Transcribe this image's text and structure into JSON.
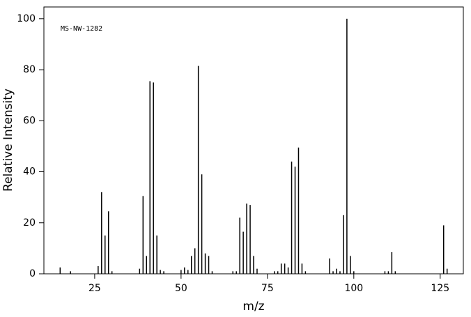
{
  "chart_data": {
    "type": "stem",
    "annotation": "MS-NW-1282",
    "xlabel": "m/z",
    "ylabel": "Relative Intensity",
    "x": [
      15,
      18,
      26,
      27,
      28,
      29,
      30,
      38,
      39,
      40,
      41,
      42,
      43,
      44,
      45,
      50,
      51,
      52,
      53,
      54,
      55,
      56,
      57,
      58,
      59,
      65,
      66,
      67,
      68,
      69,
      70,
      71,
      72,
      77,
      78,
      79,
      80,
      81,
      82,
      83,
      84,
      85,
      86,
      93,
      94,
      95,
      96,
      97,
      98,
      99,
      100,
      109,
      110,
      111,
      112,
      126,
      127
    ],
    "values": [
      2.5,
      1,
      3,
      32,
      15,
      24.5,
      1,
      2,
      30.5,
      7,
      75.5,
      75,
      15,
      1.5,
      1,
      1.5,
      2.5,
      1.5,
      7,
      10,
      81.5,
      39,
      8,
      7,
      1,
      1,
      1,
      22,
      16.5,
      27.5,
      27,
      7,
      2,
      1,
      1,
      4,
      4,
      2.5,
      44,
      42,
      49.5,
      4,
      1,
      6,
      1,
      2,
      1,
      23,
      100,
      7,
      1,
      1,
      1,
      8.5,
      1,
      19,
      2
    ],
    "color": "#000000",
    "xlim": [
      10.3,
      131.7
    ],
    "ylim": [
      0,
      104.6
    ],
    "xticks": [
      25,
      50,
      75,
      100,
      125
    ],
    "yticks": [
      0,
      20,
      40,
      60,
      80,
      100
    ]
  }
}
